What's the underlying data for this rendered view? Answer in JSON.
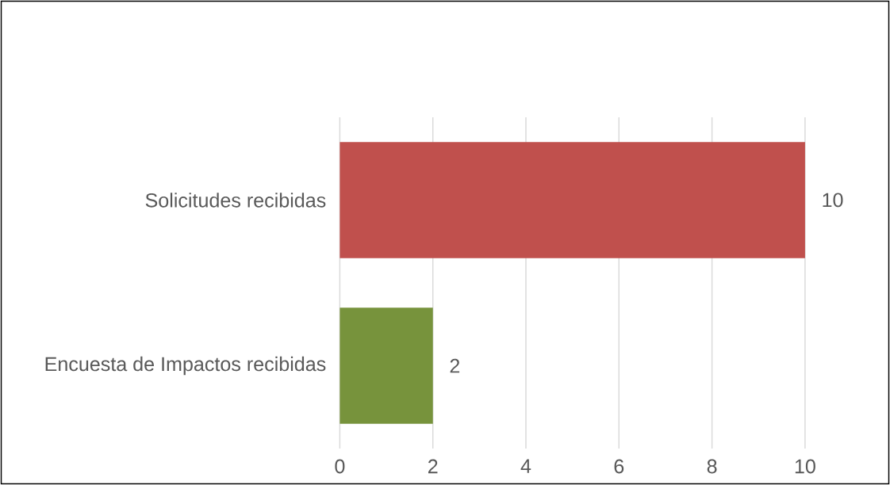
{
  "chart_data": {
    "type": "bar",
    "orientation": "horizontal",
    "categories": [
      "Solicitudes recibidas",
      "Encuesta de Impactos recibidas"
    ],
    "values": [
      10,
      2
    ],
    "colors": [
      "#c0504d",
      "#77933c"
    ],
    "xlim": [
      0,
      10
    ],
    "xticks": [
      0,
      2,
      4,
      6,
      8,
      10
    ],
    "grid": "x",
    "data_labels": true
  }
}
